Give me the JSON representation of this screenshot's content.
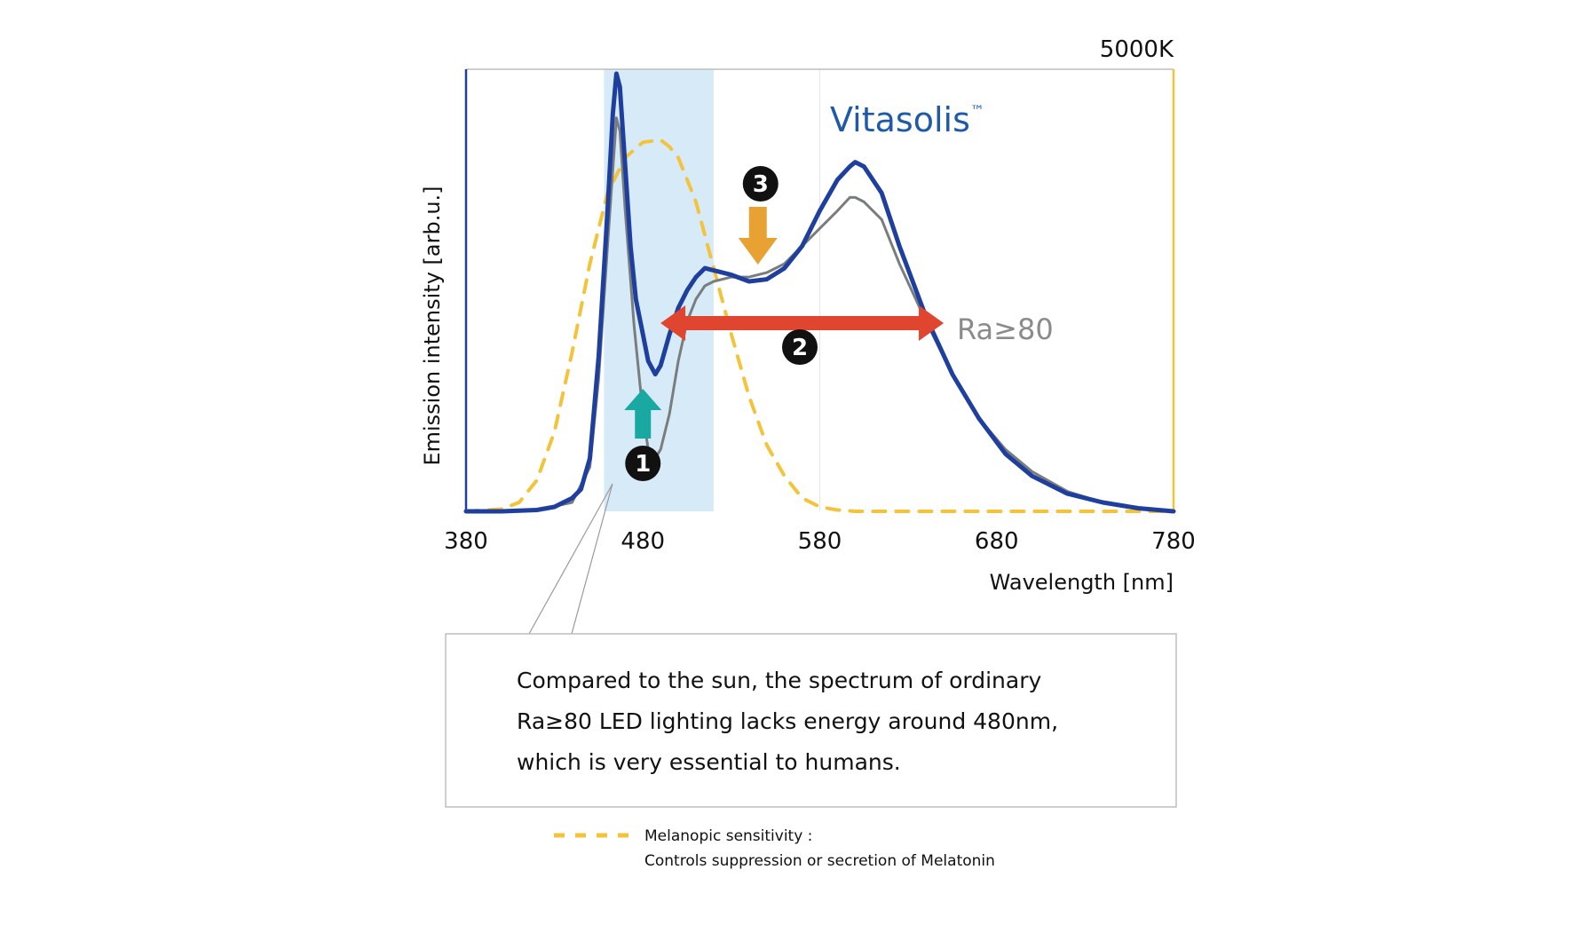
{
  "chart_data": {
    "type": "line",
    "cct_label": "5000K",
    "xlabel": "Wavelength [nm]",
    "ylabel": "Emission intensity [arb.u.]",
    "xlim": [
      380,
      780
    ],
    "ylim": [
      0,
      1.0
    ],
    "x_ticks": [
      "380",
      "480",
      "580",
      "680",
      "780"
    ],
    "grid": false,
    "highlight_band": {
      "from": 458,
      "to": 520,
      "color": "#d7eaf7"
    },
    "series": [
      {
        "name": "Vitasolis™",
        "color": "#1f3f9e",
        "width": 5,
        "dash": "",
        "points": [
          [
            380,
            0.0
          ],
          [
            400,
            0.0
          ],
          [
            420,
            0.003
          ],
          [
            430,
            0.01
          ],
          [
            440,
            0.03
          ],
          [
            445,
            0.05
          ],
          [
            450,
            0.12
          ],
          [
            455,
            0.35
          ],
          [
            460,
            0.68
          ],
          [
            463,
            0.9
          ],
          [
            465,
            0.99
          ],
          [
            467,
            0.96
          ],
          [
            470,
            0.78
          ],
          [
            473,
            0.6
          ],
          [
            476,
            0.48
          ],
          [
            480,
            0.4
          ],
          [
            483,
            0.34
          ],
          [
            487,
            0.31
          ],
          [
            490,
            0.33
          ],
          [
            495,
            0.4
          ],
          [
            500,
            0.46
          ],
          [
            505,
            0.5
          ],
          [
            510,
            0.53
          ],
          [
            515,
            0.55
          ],
          [
            520,
            0.545
          ],
          [
            530,
            0.535
          ],
          [
            540,
            0.52
          ],
          [
            550,
            0.525
          ],
          [
            560,
            0.55
          ],
          [
            570,
            0.6
          ],
          [
            580,
            0.68
          ],
          [
            590,
            0.75
          ],
          [
            597,
            0.78
          ],
          [
            600,
            0.79
          ],
          [
            605,
            0.78
          ],
          [
            615,
            0.72
          ],
          [
            625,
            0.6
          ],
          [
            640,
            0.44
          ],
          [
            655,
            0.31
          ],
          [
            670,
            0.21
          ],
          [
            685,
            0.13
          ],
          [
            700,
            0.08
          ],
          [
            720,
            0.04
          ],
          [
            740,
            0.02
          ],
          [
            760,
            0.007
          ],
          [
            780,
            0.0
          ]
        ]
      },
      {
        "name": "Ra≥80",
        "color": "#7a7d7d",
        "width": 3,
        "dash": "",
        "points": [
          [
            380,
            0.0
          ],
          [
            420,
            0.003
          ],
          [
            440,
            0.02
          ],
          [
            450,
            0.1
          ],
          [
            455,
            0.3
          ],
          [
            460,
            0.6
          ],
          [
            465,
            0.89
          ],
          [
            467,
            0.86
          ],
          [
            470,
            0.68
          ],
          [
            475,
            0.42
          ],
          [
            480,
            0.22
          ],
          [
            483,
            0.14
          ],
          [
            487,
            0.12
          ],
          [
            490,
            0.14
          ],
          [
            495,
            0.22
          ],
          [
            500,
            0.34
          ],
          [
            505,
            0.43
          ],
          [
            510,
            0.48
          ],
          [
            515,
            0.51
          ],
          [
            520,
            0.52
          ],
          [
            530,
            0.53
          ],
          [
            540,
            0.53
          ],
          [
            550,
            0.54
          ],
          [
            560,
            0.56
          ],
          [
            570,
            0.6
          ],
          [
            580,
            0.64
          ],
          [
            590,
            0.68
          ],
          [
            597,
            0.71
          ],
          [
            600,
            0.71
          ],
          [
            605,
            0.7
          ],
          [
            615,
            0.66
          ],
          [
            625,
            0.56
          ],
          [
            640,
            0.43
          ],
          [
            655,
            0.31
          ],
          [
            670,
            0.21
          ],
          [
            685,
            0.14
          ],
          [
            700,
            0.09
          ],
          [
            720,
            0.045
          ],
          [
            740,
            0.02
          ],
          [
            760,
            0.008
          ],
          [
            780,
            0.0
          ]
        ]
      },
      {
        "name": "Melanopic sensitivity",
        "color": "#f3c43b",
        "width": 4,
        "dash": "14 12",
        "points": [
          [
            380,
            0.0
          ],
          [
            400,
            0.005
          ],
          [
            410,
            0.02
          ],
          [
            420,
            0.07
          ],
          [
            430,
            0.18
          ],
          [
            440,
            0.36
          ],
          [
            450,
            0.56
          ],
          [
            460,
            0.72
          ],
          [
            470,
            0.8
          ],
          [
            480,
            0.835
          ],
          [
            490,
            0.84
          ],
          [
            495,
            0.825
          ],
          [
            500,
            0.8
          ],
          [
            510,
            0.7
          ],
          [
            520,
            0.55
          ],
          [
            530,
            0.4
          ],
          [
            540,
            0.26
          ],
          [
            550,
            0.15
          ],
          [
            560,
            0.08
          ],
          [
            570,
            0.03
          ],
          [
            580,
            0.01
          ],
          [
            590,
            0.003
          ],
          [
            600,
            0.0
          ],
          [
            640,
            0.0
          ],
          [
            690,
            0.0
          ],
          [
            780,
            0.0
          ]
        ]
      }
    ],
    "series_labels": [
      {
        "text": "Vitasolis",
        "sup": "™",
        "color": "#1f5aa8"
      },
      {
        "text": "Ra≥80",
        "color": "#8b8b8b"
      }
    ],
    "markers": [
      {
        "number": "1",
        "x": 480,
        "arrow": "up",
        "color": "#1aa8a2"
      },
      {
        "number": "2",
        "x_from": 500,
        "x_to": 640,
        "arrow": "double",
        "color": "#e0452f"
      },
      {
        "number": "3",
        "x": 545,
        "arrow": "down",
        "color": "#e7a233"
      }
    ],
    "callout": {
      "lines": [
        "Compared to the sun, the spectrum of ordinary",
        "Ra≥80 LED lighting lacks energy around 480nm,",
        "which is very essential to humans."
      ]
    },
    "legend": {
      "line1": "Melanopic sensitivity :",
      "line2": "Controls suppression or secretion of Melatonin"
    },
    "frame_colors": {
      "left": "#1f3f9e",
      "right": "#f3c43b",
      "top": "#bdbdbd"
    }
  }
}
